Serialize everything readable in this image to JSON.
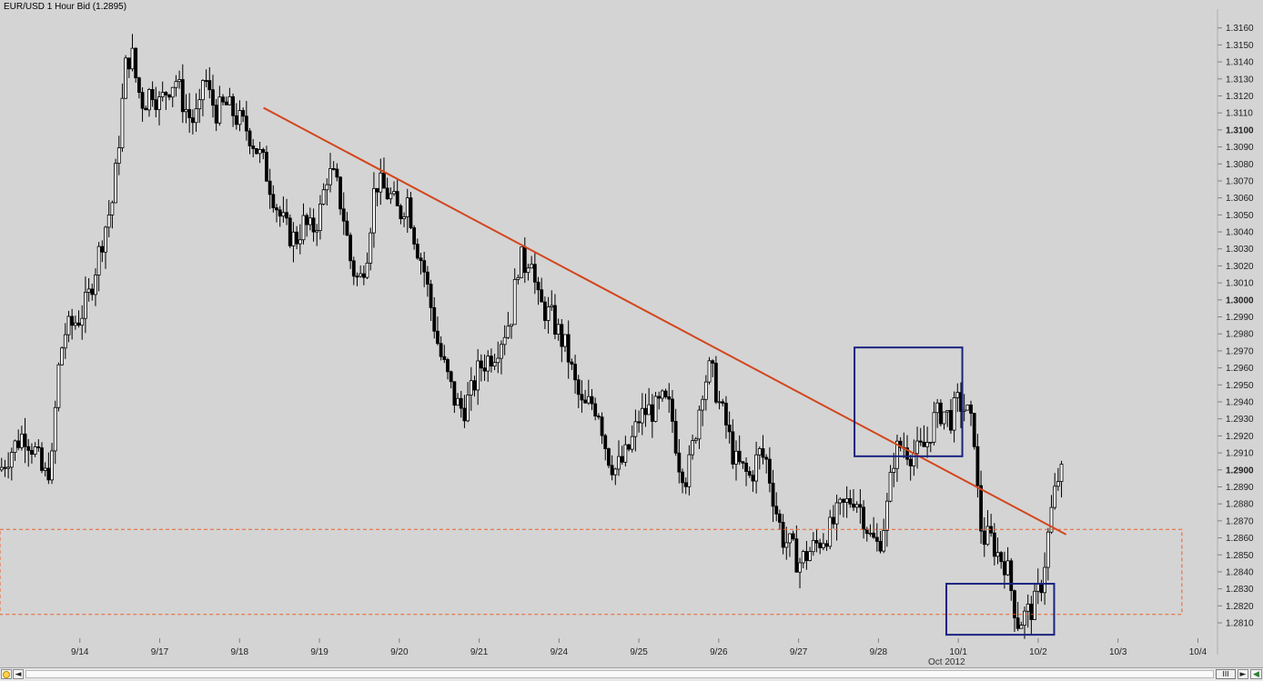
{
  "title": "EUR/USD 1 Hour Bid (1.2895)",
  "date_sub_label": "Oct 2012",
  "colors": {
    "background": "#d4d4d4",
    "candle": "#000000",
    "trendline": "#d2461e",
    "support_box": "#e8612c",
    "highlight_box": "#1a237e"
  },
  "chart_data": {
    "type": "candlestick",
    "title": "EUR/USD 1 Hour Bid (1.2895)",
    "x_tick_labels": [
      "9/14",
      "9/17",
      "9/18",
      "9/19",
      "9/20",
      "9/21",
      "9/24",
      "9/25",
      "9/26",
      "9/27",
      "9/28",
      "10/1",
      "10/2",
      "10/3",
      "10/4"
    ],
    "y_tick_labels": [
      "1.3160",
      "1.3150",
      "1.3140",
      "1.3130",
      "1.3120",
      "1.3110",
      "1.3100",
      "1.3090",
      "1.3080",
      "1.3070",
      "1.3060",
      "1.3050",
      "1.3040",
      "1.3030",
      "1.3020",
      "1.3010",
      "1.3000",
      "1.2990",
      "1.2980",
      "1.2970",
      "1.2960",
      "1.2950",
      "1.2940",
      "1.2930",
      "1.2920",
      "1.2910",
      "1.2900",
      "1.2890",
      "1.2880",
      "1.2870",
      "1.2860",
      "1.2850",
      "1.2840",
      "1.2830",
      "1.2820",
      "1.2810"
    ],
    "y_bold_ticks": [
      "1.3100",
      "1.3000",
      "1.2900"
    ],
    "ylim": [
      1.2802,
      1.317
    ],
    "xlim": [
      0,
      15.2
    ],
    "y_axis_position": "right",
    "grid": false,
    "series": [
      {
        "approx_close": [
          [
            0.0,
            1.29
          ],
          [
            0.15,
            1.2912
          ],
          [
            0.3,
            1.2922
          ],
          [
            0.45,
            1.291
          ],
          [
            0.55,
            1.2895
          ],
          [
            0.65,
            1.2905
          ],
          [
            0.72,
            1.2955
          ],
          [
            0.8,
            1.298
          ],
          [
            0.9,
            1.2985
          ],
          [
            1.0,
            1.299
          ],
          [
            1.1,
            1.3
          ],
          [
            1.2,
            1.302
          ],
          [
            1.3,
            1.304
          ],
          [
            1.42,
            1.306
          ],
          [
            1.5,
            1.31
          ],
          [
            1.58,
            1.314
          ],
          [
            1.65,
            1.3145
          ],
          [
            1.72,
            1.3125
          ],
          [
            1.8,
            1.3115
          ],
          [
            1.9,
            1.3125
          ],
          [
            2.0,
            1.3115
          ],
          [
            2.1,
            1.3125
          ],
          [
            2.2,
            1.313
          ],
          [
            2.3,
            1.3115
          ],
          [
            2.4,
            1.3105
          ],
          [
            2.5,
            1.311
          ],
          [
            2.55,
            1.3135
          ],
          [
            2.62,
            1.312
          ],
          [
            2.72,
            1.311
          ],
          [
            2.82,
            1.3115
          ],
          [
            2.92,
            1.311
          ],
          [
            3.0,
            1.3105
          ],
          [
            3.1,
            1.31
          ],
          [
            3.2,
            1.309
          ],
          [
            3.3,
            1.308
          ],
          [
            3.4,
            1.3065
          ],
          [
            3.5,
            1.305
          ],
          [
            3.6,
            1.304
          ],
          [
            3.7,
            1.3035
          ],
          [
            3.8,
            1.3045
          ],
          [
            3.9,
            1.304
          ],
          [
            4.0,
            1.305
          ],
          [
            4.1,
            1.3075
          ],
          [
            4.2,
            1.307
          ],
          [
            4.3,
            1.305
          ],
          [
            4.4,
            1.302
          ],
          [
            4.5,
            1.301
          ],
          [
            4.6,
            1.303
          ],
          [
            4.7,
            1.307
          ],
          [
            4.8,
            1.3065
          ],
          [
            4.9,
            1.306
          ],
          [
            5.0,
            1.305
          ],
          [
            5.1,
            1.306
          ],
          [
            5.2,
            1.3035
          ],
          [
            5.3,
            1.302
          ],
          [
            5.4,
            1.2995
          ],
          [
            5.5,
            1.297
          ],
          [
            5.6,
            1.2955
          ],
          [
            5.7,
            1.294
          ],
          [
            5.8,
            1.2935
          ],
          [
            5.9,
            1.2945
          ],
          [
            6.0,
            1.296
          ],
          [
            6.1,
            1.2965
          ],
          [
            6.2,
            1.297
          ],
          [
            6.3,
            1.298
          ],
          [
            6.4,
            1.299
          ],
          [
            6.5,
            1.3025
          ],
          [
            6.58,
            1.302
          ],
          [
            6.65,
            1.303
          ],
          [
            6.72,
            1.3
          ],
          [
            6.8,
            1.2995
          ],
          [
            6.9,
            1.299
          ],
          [
            7.0,
            1.298
          ],
          [
            7.1,
            1.297
          ],
          [
            7.2,
            1.295
          ],
          [
            7.3,
            1.2935
          ],
          [
            7.4,
            1.294
          ],
          [
            7.5,
            1.2935
          ],
          [
            7.6,
            1.291
          ],
          [
            7.7,
            1.29
          ],
          [
            7.8,
            1.2905
          ],
          [
            7.9,
            1.2915
          ],
          [
            8.0,
            1.293
          ],
          [
            8.1,
            1.2935
          ],
          [
            8.2,
            1.2935
          ],
          [
            8.3,
            1.294
          ],
          [
            8.4,
            1.2935
          ],
          [
            8.5,
            1.2905
          ],
          [
            8.6,
            1.2895
          ],
          [
            8.7,
            1.292
          ],
          [
            8.8,
            1.295
          ],
          [
            8.9,
            1.296
          ],
          [
            9.0,
            1.294
          ],
          [
            9.1,
            1.2925
          ],
          [
            9.2,
            1.2905
          ],
          [
            9.3,
            1.29
          ],
          [
            9.4,
            1.2895
          ],
          [
            9.5,
            1.291
          ],
          [
            9.6,
            1.2905
          ],
          [
            9.7,
            1.288
          ],
          [
            9.8,
            1.286
          ],
          [
            9.9,
            1.2855
          ],
          [
            10.0,
            1.2845
          ],
          [
            10.1,
            1.285
          ],
          [
            10.2,
            1.2855
          ],
          [
            10.3,
            1.286
          ],
          [
            10.4,
            1.2865
          ],
          [
            10.5,
            1.2875
          ],
          [
            10.6,
            1.288
          ],
          [
            10.7,
            1.2885
          ],
          [
            10.8,
            1.2875
          ],
          [
            10.9,
            1.286
          ],
          [
            11.0,
            1.2855
          ],
          [
            11.1,
            1.2875
          ],
          [
            11.2,
            1.291
          ],
          [
            11.3,
            1.2915
          ],
          [
            11.4,
            1.291
          ],
          [
            11.5,
            1.291
          ],
          [
            11.6,
            1.2915
          ],
          [
            11.7,
            1.293
          ],
          [
            11.8,
            1.2935
          ],
          [
            11.9,
            1.293
          ],
          [
            12.0,
            1.294
          ],
          [
            12.1,
            1.2935
          ],
          [
            12.2,
            1.292
          ],
          [
            12.25,
            1.288
          ],
          [
            12.3,
            1.286
          ],
          [
            12.4,
            1.286
          ],
          [
            12.5,
            1.285
          ],
          [
            12.6,
            1.2845
          ],
          [
            12.7,
            1.282
          ],
          [
            12.75,
            1.281
          ],
          [
            12.85,
            1.2815
          ],
          [
            12.95,
            1.282
          ],
          [
            13.05,
            1.2835
          ],
          [
            13.12,
            1.286
          ],
          [
            13.18,
            1.288
          ],
          [
            13.25,
            1.2895
          ],
          [
            13.32,
            1.2898
          ]
        ]
      }
    ],
    "annotations": [
      {
        "type": "trendline",
        "from": [
          3.3,
          1.3113
        ],
        "to": [
          13.35,
          1.2862
        ]
      },
      {
        "type": "rectangle",
        "style": "dashed",
        "x": [
          0,
          14.8
        ],
        "y": [
          1.2815,
          1.2865
        ]
      },
      {
        "type": "rectangle",
        "style": "solid",
        "x": [
          10.7,
          12.05
        ],
        "y": [
          1.2908,
          1.2972
        ]
      },
      {
        "type": "rectangle",
        "style": "solid",
        "x": [
          11.85,
          13.2
        ],
        "y": [
          1.2803,
          1.2833
        ]
      }
    ]
  },
  "scrollbar": {
    "left_icon": "rewind-icon",
    "left_arrow": "◄",
    "right_arrow": "►",
    "end_icon": "fast-forward-icon",
    "thumb_glyph": "III"
  }
}
